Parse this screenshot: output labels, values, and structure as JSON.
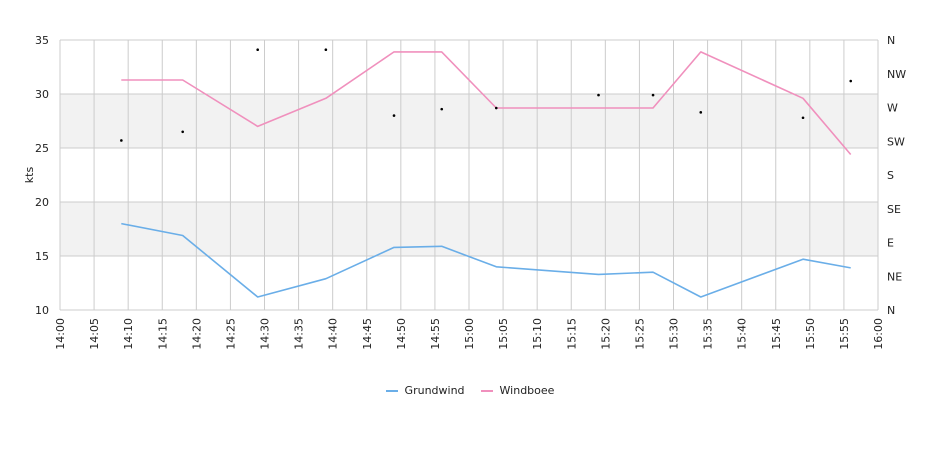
{
  "chart_data": {
    "type": "line",
    "ylabel": "kts",
    "y_left_ticks": [
      10,
      15,
      20,
      25,
      30,
      35
    ],
    "ylim": [
      10,
      35
    ],
    "y_right_ticks": [
      "N",
      "NE",
      "E",
      "SE",
      "S",
      "SW",
      "W",
      "NW",
      "N"
    ],
    "x_ticks": [
      "14:00",
      "14:05",
      "14:10",
      "14:15",
      "14:20",
      "14:25",
      "14:30",
      "14:35",
      "14:40",
      "14:45",
      "14:50",
      "14:55",
      "15:00",
      "15:05",
      "15:10",
      "15:15",
      "15:20",
      "15:25",
      "15:30",
      "15:35",
      "15:40",
      "15:45",
      "15:50",
      "15:55",
      "16:00"
    ],
    "xlim": [
      "14:00",
      "16:00"
    ],
    "bands": [
      [
        15,
        20
      ],
      [
        25,
        30
      ]
    ],
    "band_color": "#f2f2f2",
    "grid": true,
    "legend_position": "bottom-center",
    "series": [
      {
        "name": "Grundwind",
        "color": "#6aaee8",
        "points": [
          [
            "14:09",
            18.0
          ],
          [
            "14:18",
            16.9
          ],
          [
            "14:29",
            11.2
          ],
          [
            "14:39",
            12.9
          ],
          [
            "14:49",
            15.8
          ],
          [
            "14:56",
            15.9
          ],
          [
            "15:04",
            14.0
          ],
          [
            "15:19",
            13.3
          ],
          [
            "15:27",
            13.5
          ],
          [
            "15:34",
            11.2
          ],
          [
            "15:49",
            14.7
          ],
          [
            "15:56",
            13.9
          ]
        ]
      },
      {
        "name": "Windboee",
        "color": "#f090bd",
        "points": [
          [
            "14:09",
            31.3
          ],
          [
            "14:18",
            31.3
          ],
          [
            "14:29",
            27.0
          ],
          [
            "14:39",
            29.6
          ],
          [
            "14:49",
            33.9
          ],
          [
            "14:56",
            33.9
          ],
          [
            "15:04",
            28.7
          ],
          [
            "15:19",
            28.7
          ],
          [
            "15:27",
            28.7
          ],
          [
            "15:34",
            33.9
          ],
          [
            "15:49",
            29.6
          ],
          [
            "15:56",
            24.4
          ]
        ]
      }
    ],
    "direction": {
      "color": "#000000",
      "points": [
        [
          "14:09",
          25.7
        ],
        [
          "14:18",
          26.5
        ],
        [
          "14:29",
          34.1
        ],
        [
          "14:39",
          34.1
        ],
        [
          "14:49",
          28.0
        ],
        [
          "14:56",
          28.6
        ],
        [
          "15:04",
          28.7
        ],
        [
          "15:19",
          29.9
        ],
        [
          "15:27",
          29.9
        ],
        [
          "15:34",
          28.3
        ],
        [
          "15:49",
          27.8
        ],
        [
          "15:56",
          31.2
        ]
      ]
    }
  }
}
